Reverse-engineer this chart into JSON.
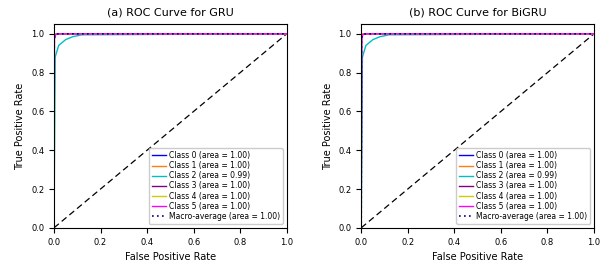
{
  "title_gru": "(a) ROC Curve for GRU",
  "title_bigru": "(b) ROC Curve for BiGRU",
  "xlabel": "False Positive Rate",
  "ylabel": "True Positive Rate",
  "classes": [
    {
      "label": "Class 0 (area = 1.00)",
      "color": "#0000ff"
    },
    {
      "label": "Class 1 (area = 1.00)",
      "color": "#ff7f0e"
    },
    {
      "label": "Class 2 (area = 0.99)",
      "color": "#00bfbf"
    },
    {
      "label": "Class 3 (area = 1.00)",
      "color": "#800080"
    },
    {
      "label": "Class 4 (area = 1.00)",
      "color": "#cccc00"
    },
    {
      "label": "Class 5 (area = 1.00)",
      "color": "#ff00ff"
    }
  ],
  "macro_label": "Macro-average (area = 1.00)",
  "macro_color": "#00008b",
  "diagonal_color": "black",
  "xlim": [
    0.0,
    1.0
  ],
  "ylim": [
    0.0,
    1.05
  ],
  "legend_fontsize": 5.5,
  "title_fontsize": 8,
  "axis_label_fontsize": 7,
  "tick_fontsize": 6,
  "gru_curves_fpr": [
    [
      0,
      0.001,
      0.002,
      0.005,
      0.01,
      0.05,
      1.0
    ],
    [
      0,
      0.001,
      0.003,
      0.006,
      0.015,
      0.06,
      1.0
    ],
    [
      0,
      0.005,
      0.02,
      0.05,
      0.08,
      0.12,
      1.0
    ],
    [
      0,
      0.001,
      0.002,
      0.004,
      0.008,
      0.04,
      1.0
    ],
    [
      0,
      0.0005,
      0.001,
      0.003,
      0.006,
      0.03,
      1.0
    ],
    [
      0,
      0.002,
      0.005,
      0.008,
      0.012,
      0.055,
      1.0
    ]
  ],
  "gru_curves_tpr": [
    [
      0,
      0.97,
      0.99,
      0.998,
      1.0,
      1.0,
      1.0
    ],
    [
      0,
      0.98,
      0.995,
      1.0,
      1.0,
      1.0,
      1.0
    ],
    [
      0,
      0.88,
      0.94,
      0.97,
      0.985,
      0.995,
      1.0
    ],
    [
      0,
      0.975,
      0.992,
      0.998,
      1.0,
      1.0,
      1.0
    ],
    [
      0,
      0.985,
      0.997,
      1.0,
      1.0,
      1.0,
      1.0
    ],
    [
      0,
      0.972,
      0.989,
      0.996,
      1.0,
      1.0,
      1.0
    ]
  ],
  "bigru_curves_fpr": [
    [
      0,
      0.001,
      0.002,
      0.005,
      0.01,
      0.05,
      1.0
    ],
    [
      0,
      0.001,
      0.003,
      0.006,
      0.015,
      0.06,
      1.0
    ],
    [
      0,
      0.005,
      0.02,
      0.05,
      0.08,
      0.12,
      1.0
    ],
    [
      0,
      0.001,
      0.002,
      0.004,
      0.008,
      0.04,
      1.0
    ],
    [
      0,
      0.0005,
      0.001,
      0.003,
      0.006,
      0.03,
      1.0
    ],
    [
      0,
      0.002,
      0.005,
      0.008,
      0.012,
      0.055,
      1.0
    ]
  ],
  "bigru_curves_tpr": [
    [
      0,
      0.97,
      0.99,
      0.998,
      1.0,
      1.0,
      1.0
    ],
    [
      0,
      0.98,
      0.995,
      1.0,
      1.0,
      1.0,
      1.0
    ],
    [
      0,
      0.88,
      0.94,
      0.97,
      0.985,
      0.995,
      1.0
    ],
    [
      0,
      0.975,
      0.992,
      0.998,
      1.0,
      1.0,
      1.0
    ],
    [
      0,
      0.985,
      0.997,
      1.0,
      1.0,
      1.0,
      1.0
    ],
    [
      0,
      0.972,
      0.989,
      0.996,
      1.0,
      1.0,
      1.0
    ]
  ],
  "macro_fpr": [
    0,
    0.001,
    0.003,
    0.008,
    0.02,
    0.08,
    1.0
  ],
  "macro_tpr": [
    0,
    0.965,
    0.988,
    0.997,
    1.0,
    1.0,
    1.0
  ]
}
